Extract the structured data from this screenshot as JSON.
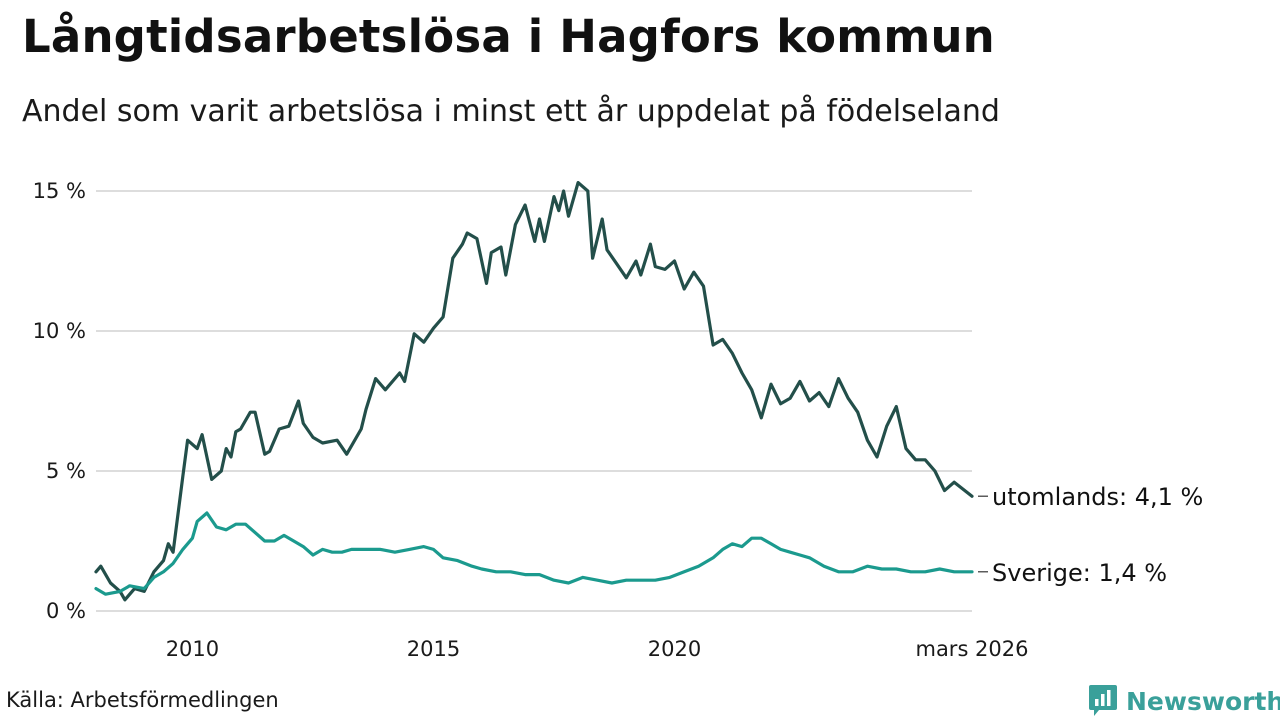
{
  "chart_data": {
    "type": "line",
    "title": "Långtidsarbetslösa i Hagfors kommun",
    "subtitle": "Andel som varit arbetslösa i minst ett år uppdelat på födelseland",
    "x_tick_labels": [
      "2010",
      "2015",
      "2020",
      "mars 2026"
    ],
    "x_tick_values": [
      2010,
      2015,
      2020,
      2026.17
    ],
    "y_tick_labels": [
      "0 %",
      "5 %",
      "10 %",
      "15 %"
    ],
    "y_tick_values": [
      0,
      5,
      10,
      15
    ],
    "xlim": [
      2008.0,
      2026.17
    ],
    "ylim": [
      0,
      15.5
    ],
    "grid": "horizontal",
    "series": [
      {
        "name": "utomlands",
        "end_label": "utomlands: 4,1 %",
        "color": "#234f4a",
        "x": [
          2008.0,
          2008.1,
          2008.3,
          2008.5,
          2008.6,
          2008.8,
          2009.0,
          2009.2,
          2009.4,
          2009.5,
          2009.6,
          2009.8,
          2009.9,
          2010.1,
          2010.2,
          2010.4,
          2010.6,
          2010.7,
          2010.8,
          2010.9,
          2011.0,
          2011.2,
          2011.3,
          2011.5,
          2011.6,
          2011.8,
          2012.0,
          2012.2,
          2012.3,
          2012.5,
          2012.7,
          2013.0,
          2013.2,
          2013.5,
          2013.6,
          2013.8,
          2014.0,
          2014.3,
          2014.4,
          2014.6,
          2014.8,
          2015.0,
          2015.2,
          2015.4,
          2015.6,
          2015.7,
          2015.9,
          2016.1,
          2016.2,
          2016.4,
          2016.5,
          2016.7,
          2016.9,
          2017.1,
          2017.2,
          2017.3,
          2017.5,
          2017.6,
          2017.7,
          2017.8,
          2018.0,
          2018.2,
          2018.3,
          2018.5,
          2018.6,
          2018.8,
          2019.0,
          2019.2,
          2019.3,
          2019.5,
          2019.6,
          2019.8,
          2020.0,
          2020.2,
          2020.4,
          2020.6,
          2020.8,
          2021.0,
          2021.2,
          2021.4,
          2021.6,
          2021.8,
          2022.0,
          2022.2,
          2022.4,
          2022.6,
          2022.8,
          2023.0,
          2023.2,
          2023.4,
          2023.6,
          2023.8,
          2024.0,
          2024.2,
          2024.4,
          2024.6,
          2024.8,
          2025.0,
          2025.2,
          2025.4,
          2025.6,
          2025.8,
          2026.17
        ],
        "values": [
          1.4,
          1.6,
          1.0,
          0.7,
          0.4,
          0.8,
          0.7,
          1.4,
          1.8,
          2.4,
          2.1,
          4.8,
          6.1,
          5.8,
          6.3,
          4.7,
          5.0,
          5.8,
          5.5,
          6.4,
          6.5,
          7.1,
          7.1,
          5.6,
          5.7,
          6.5,
          6.6,
          7.5,
          6.7,
          6.2,
          6.0,
          6.1,
          5.6,
          6.5,
          7.2,
          8.3,
          7.9,
          8.5,
          8.2,
          9.9,
          9.6,
          10.1,
          10.5,
          12.6,
          13.1,
          13.5,
          13.3,
          11.7,
          12.8,
          13.0,
          12.0,
          13.8,
          14.5,
          13.2,
          14.0,
          13.2,
          14.8,
          14.3,
          15.0,
          14.1,
          15.3,
          15.0,
          12.6,
          14.0,
          12.9,
          12.4,
          11.9,
          12.5,
          12.0,
          13.1,
          12.3,
          12.2,
          12.5,
          11.5,
          12.1,
          11.6,
          9.5,
          9.7,
          9.2,
          8.5,
          7.9,
          6.9,
          8.1,
          7.4,
          7.6,
          8.2,
          7.5,
          7.8,
          7.3,
          8.3,
          7.6,
          7.1,
          6.1,
          5.5,
          6.6,
          7.3,
          5.8,
          5.4,
          5.4,
          5.0,
          4.3,
          4.6,
          4.1
        ],
        "legend_value": "4,1 %"
      },
      {
        "name": "Sverige",
        "end_label": "Sverige: 1,4 %",
        "color": "#1b9a8e",
        "x": [
          2008.0,
          2008.2,
          2008.5,
          2008.7,
          2009.0,
          2009.2,
          2009.4,
          2009.6,
          2009.8,
          2010.0,
          2010.1,
          2010.3,
          2010.5,
          2010.7,
          2010.9,
          2011.1,
          2011.3,
          2011.5,
          2011.7,
          2011.9,
          2012.1,
          2012.3,
          2012.5,
          2012.7,
          2012.9,
          2013.1,
          2013.3,
          2013.6,
          2013.9,
          2014.2,
          2014.5,
          2014.8,
          2015.0,
          2015.2,
          2015.5,
          2015.8,
          2016.0,
          2016.3,
          2016.6,
          2016.9,
          2017.2,
          2017.5,
          2017.8,
          2018.1,
          2018.4,
          2018.7,
          2019.0,
          2019.3,
          2019.6,
          2019.9,
          2020.2,
          2020.5,
          2020.8,
          2021.0,
          2021.2,
          2021.4,
          2021.6,
          2021.8,
          2022.0,
          2022.2,
          2022.4,
          2022.6,
          2022.8,
          2023.1,
          2023.4,
          2023.7,
          2024.0,
          2024.3,
          2024.6,
          2024.9,
          2025.2,
          2025.5,
          2025.8,
          2026.17
        ],
        "values": [
          0.8,
          0.6,
          0.7,
          0.9,
          0.8,
          1.2,
          1.4,
          1.7,
          2.2,
          2.6,
          3.2,
          3.5,
          3.0,
          2.9,
          3.1,
          3.1,
          2.8,
          2.5,
          2.5,
          2.7,
          2.5,
          2.3,
          2.0,
          2.2,
          2.1,
          2.1,
          2.2,
          2.2,
          2.2,
          2.1,
          2.2,
          2.3,
          2.2,
          1.9,
          1.8,
          1.6,
          1.5,
          1.4,
          1.4,
          1.3,
          1.3,
          1.1,
          1.0,
          1.2,
          1.1,
          1.0,
          1.1,
          1.1,
          1.1,
          1.2,
          1.4,
          1.6,
          1.9,
          2.2,
          2.4,
          2.3,
          2.6,
          2.6,
          2.4,
          2.2,
          2.1,
          2.0,
          1.9,
          1.6,
          1.4,
          1.4,
          1.6,
          1.5,
          1.5,
          1.4,
          1.4,
          1.5,
          1.4,
          1.4
        ],
        "legend_value": "1,4 %"
      }
    ]
  },
  "footer": {
    "source": "Källa: Arbetsförmedlingen",
    "brand": "Newsworthy",
    "brand_color": "#3aa09a"
  }
}
